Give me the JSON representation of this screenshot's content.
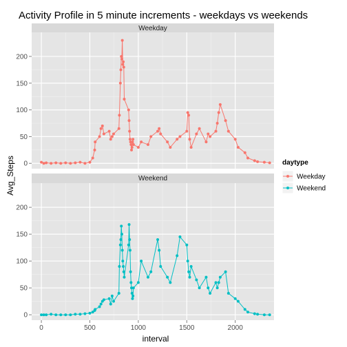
{
  "chart_data": {
    "type": "line",
    "title": "Activity Profile in 5 minute increments - weekdays vs weekends",
    "xlabel": "interval",
    "ylabel": "Avg_Steps",
    "xlim": [
      -100,
      2400
    ],
    "ylim": [
      -10,
      245
    ],
    "x_ticks": [
      0,
      500,
      1000,
      1500,
      2000
    ],
    "y_ticks": [
      0,
      50,
      100,
      150,
      200
    ],
    "grid": true,
    "legend_title": "daytype",
    "legend_position": "right",
    "facets": [
      "Weekday",
      "Weekend"
    ],
    "series": [
      {
        "name": "Weekday",
        "facet": "Weekday",
        "color": "#f8766d",
        "x": [
          0,
          25,
          50,
          100,
          150,
          200,
          250,
          300,
          350,
          400,
          450,
          500,
          530,
          550,
          555,
          600,
          615,
          630,
          645,
          700,
          715,
          730,
          745,
          800,
          805,
          815,
          820,
          825,
          830,
          835,
          840,
          845,
          850,
          855,
          900,
          905,
          910,
          915,
          920,
          925,
          930,
          935,
          940,
          945,
          950,
          1000,
          1030,
          1100,
          1130,
          1200,
          1215,
          1230,
          1300,
          1330,
          1400,
          1430,
          1500,
          1510,
          1520,
          1530,
          1545,
          1600,
          1630,
          1700,
          1720,
          1740,
          1800,
          1815,
          1830,
          1845,
          1900,
          1930,
          2000,
          2030,
          2100,
          2130,
          2200,
          2230,
          2300,
          2355
        ],
        "y": [
          2,
          0,
          1,
          0,
          1,
          0,
          1,
          0,
          1,
          2,
          0,
          2,
          10,
          25,
          40,
          50,
          65,
          70,
          55,
          60,
          45,
          50,
          55,
          65,
          90,
          150,
          175,
          200,
          195,
          230,
          185,
          190,
          180,
          120,
          100,
          80,
          60,
          45,
          40,
          35,
          25,
          30,
          40,
          45,
          35,
          30,
          40,
          35,
          50,
          60,
          65,
          55,
          40,
          30,
          45,
          50,
          60,
          95,
          90,
          45,
          30,
          55,
          65,
          40,
          55,
          50,
          60,
          75,
          95,
          110,
          80,
          60,
          45,
          30,
          20,
          10,
          5,
          3,
          2,
          1
        ]
      },
      {
        "name": "Weekend",
        "facet": "Weekend",
        "color": "#00bfc4",
        "x": [
          0,
          25,
          50,
          100,
          150,
          200,
          250,
          300,
          350,
          400,
          450,
          500,
          530,
          550,
          555,
          600,
          615,
          630,
          645,
          700,
          715,
          730,
          745,
          800,
          805,
          815,
          820,
          825,
          830,
          835,
          840,
          845,
          850,
          855,
          900,
          905,
          910,
          915,
          920,
          925,
          930,
          935,
          940,
          945,
          950,
          1000,
          1030,
          1100,
          1130,
          1200,
          1215,
          1230,
          1300,
          1330,
          1400,
          1430,
          1500,
          1510,
          1520,
          1530,
          1545,
          1600,
          1630,
          1700,
          1720,
          1740,
          1800,
          1815,
          1830,
          1845,
          1900,
          1930,
          2000,
          2030,
          2100,
          2130,
          2200,
          2230,
          2300,
          2355
        ],
        "y": [
          0,
          0,
          0,
          1,
          0,
          0,
          0,
          0,
          1,
          1,
          2,
          3,
          5,
          8,
          10,
          15,
          20,
          25,
          28,
          30,
          20,
          35,
          25,
          40,
          90,
          130,
          140,
          165,
          150,
          120,
          100,
          90,
          80,
          70,
          130,
          168,
          140,
          120,
          80,
          60,
          50,
          40,
          30,
          35,
          50,
          60,
          100,
          70,
          80,
          140,
          120,
          90,
          70,
          60,
          110,
          145,
          130,
          100,
          80,
          70,
          90,
          65,
          50,
          70,
          50,
          40,
          60,
          50,
          60,
          70,
          80,
          40,
          30,
          25,
          10,
          5,
          2,
          1,
          0,
          0
        ]
      }
    ]
  }
}
